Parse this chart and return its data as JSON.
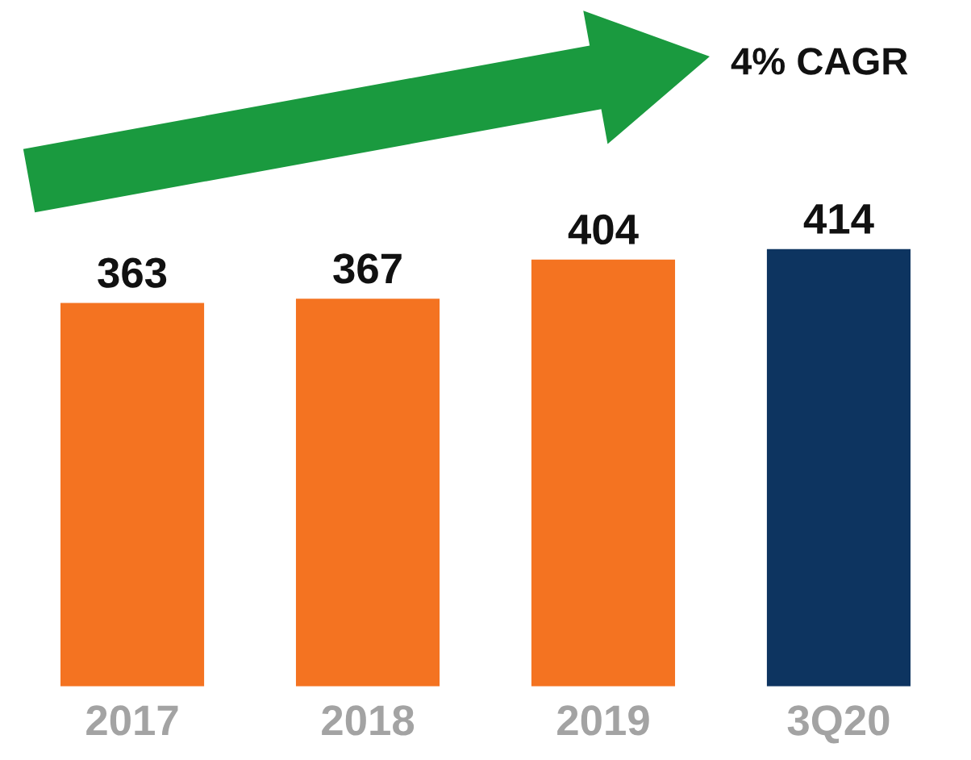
{
  "chart_data": {
    "type": "bar",
    "categories": [
      "2017",
      "2018",
      "2019",
      "3Q20"
    ],
    "values": [
      363,
      367,
      404,
      414
    ],
    "colors": [
      "#f47321",
      "#f47321",
      "#f47321",
      "#0d3460"
    ],
    "data_labels": true,
    "grid": false,
    "legend": false,
    "tick_labels": "x",
    "annotations": [
      "4% CAGR"
    ]
  }
}
